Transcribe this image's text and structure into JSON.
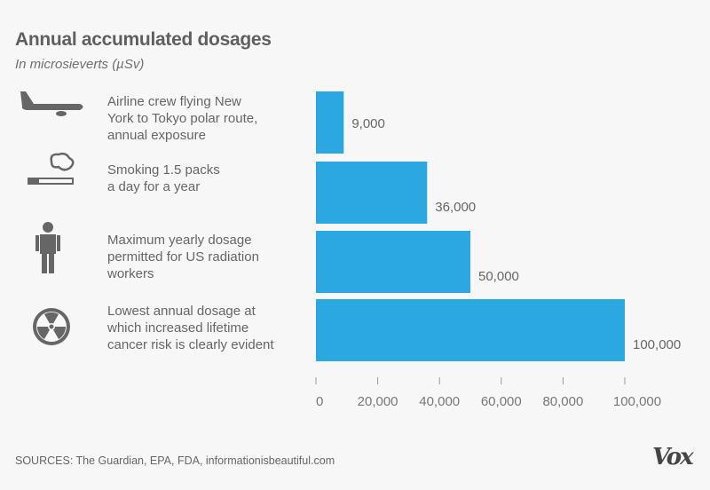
{
  "chart_data": {
    "type": "bar",
    "orientation": "horizontal",
    "title": "Annual accumulated dosages",
    "subtitle": "In microsieverts (µSv)",
    "categories": [
      "Airline crew flying New York to Tokyo polar route, annual exposure",
      "Smoking 1.5 packs a day for a year",
      "Maximum yearly dosage permitted for US radiation workers",
      "Lowest annual dosage at which increased lifetime cancer risk is clearly evident"
    ],
    "category_lines": [
      [
        "Airline crew flying New",
        "York to Tokyo polar route,",
        "annual exposure"
      ],
      [
        "Smoking 1.5 packs",
        "a day for a year"
      ],
      [
        "Maximum yearly dosage",
        "permitted for US radiation",
        "workers"
      ],
      [
        "Lowest annual dosage at",
        "which increased lifetime",
        "cancer risk is clearly evident"
      ]
    ],
    "category_icons": [
      "airplane-icon",
      "cigarette-icon",
      "radiation-worker-icon",
      "radiation-icon"
    ],
    "values": [
      9000,
      36000,
      50000,
      100000
    ],
    "data_labels": [
      "9,000",
      "36,000",
      "50,000",
      "100,000"
    ],
    "xlim": [
      0,
      100000
    ],
    "xticks": [
      0,
      20000,
      40000,
      60000,
      80000,
      100000
    ],
    "xtick_labels": [
      "0",
      "20,000",
      "40,000",
      "60,000",
      "80,000",
      "100,000"
    ],
    "grid": false,
    "bar_color": "#2ba8e0"
  },
  "source": "SOURCES: The Guardian, EPA, FDA, informationisbeautiful.com",
  "logo": "Vox"
}
